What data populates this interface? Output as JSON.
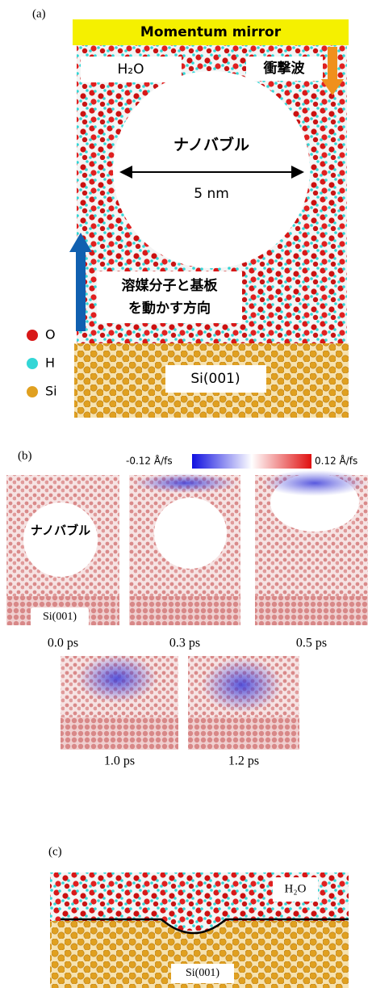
{
  "panel_a": {
    "label": "(a)",
    "mirror": "Momentum mirror",
    "water_label": "H₂O",
    "shock_label": "衝撃波",
    "bubble_label": "ナノバブル",
    "diameter": "5 nm",
    "direction_label": [
      "溶媒分子と基板",
      "を動かす方向"
    ],
    "legend": [
      "O",
      "H",
      "Si"
    ],
    "substrate_label": "Si(001)"
  },
  "panel_b": {
    "label": "(b)",
    "colorbar": {
      "min_label": "-0.12 Å/fs",
      "max_label": "0.12 Å/fs"
    },
    "bubble_label": "ナノバブル",
    "substrate_label": "Si(001)",
    "frames": [
      "0.0 ps",
      "0.3 ps",
      "0.5 ps",
      "1.0 ps",
      "1.2 ps"
    ]
  },
  "panel_c": {
    "label": "(c)",
    "water_label": "H₂O",
    "substrate_label": "Si(001)"
  }
}
